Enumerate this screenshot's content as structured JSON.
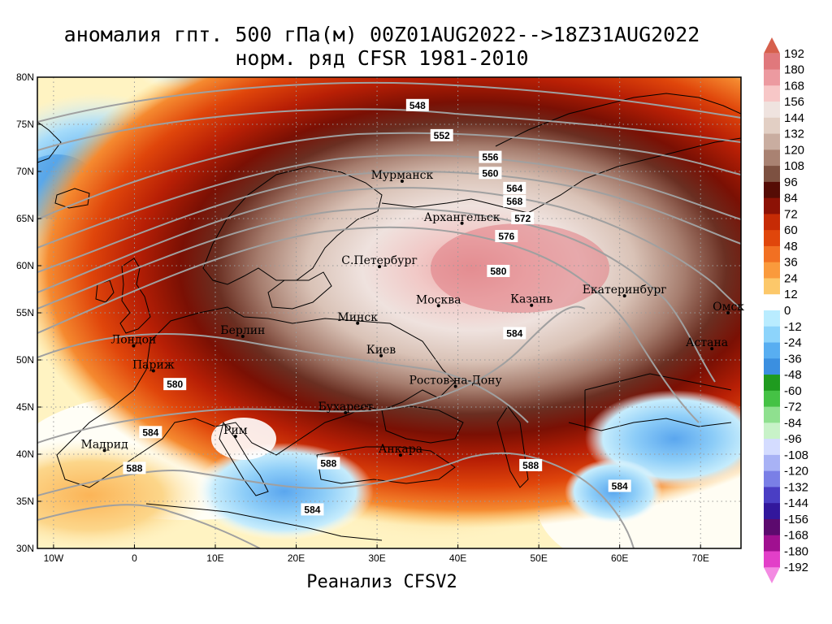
{
  "title_line1": "аномалия гпт. 500 гПа(м) 00Z01AUG2022-->18Z31AUG2022",
  "title_line2": "норм. ряд CFSR 1981-2010",
  "footer": "Реанализ CFSV2",
  "map": {
    "lon_range": [
      -12,
      75
    ],
    "lat_range": [
      30,
      80
    ],
    "lat_ticks": [
      "30N",
      "35N",
      "40N",
      "45N",
      "50N",
      "55N",
      "60N",
      "65N",
      "70N",
      "75N",
      "80N"
    ],
    "lon_ticks": [
      "10W",
      "0",
      "10E",
      "20E",
      "30E",
      "40E",
      "50E",
      "60E",
      "70E"
    ],
    "grid": true,
    "anomaly_center": {
      "lon": 45,
      "lat": 61,
      "value": 192
    },
    "cities": [
      {
        "name": "Мурманск",
        "lon": 33.1,
        "lat": 68.97
      },
      {
        "name": "Архангельск",
        "lon": 40.5,
        "lat": 64.5
      },
      {
        "name": "С.Петербург",
        "lon": 30.3,
        "lat": 59.9
      },
      {
        "name": "Москва",
        "lon": 37.6,
        "lat": 55.75
      },
      {
        "name": "Казань",
        "lon": 49.1,
        "lat": 55.8
      },
      {
        "name": "Екатеринбург",
        "lon": 60.6,
        "lat": 56.8
      },
      {
        "name": "Минск",
        "lon": 27.6,
        "lat": 53.9
      },
      {
        "name": "Омск",
        "lon": 73.4,
        "lat": 55.0
      },
      {
        "name": "Астана",
        "lon": 71.4,
        "lat": 51.2
      },
      {
        "name": "Лондон",
        "lon": -0.1,
        "lat": 51.5
      },
      {
        "name": "Берлин",
        "lon": 13.4,
        "lat": 52.5
      },
      {
        "name": "Париж",
        "lon": 2.35,
        "lat": 48.85
      },
      {
        "name": "Киев",
        "lon": 30.5,
        "lat": 50.45
      },
      {
        "name": "Ростов-на-Дону",
        "lon": 39.7,
        "lat": 47.2
      },
      {
        "name": "Бухарест",
        "lon": 26.1,
        "lat": 44.4
      },
      {
        "name": "Рим",
        "lon": 12.5,
        "lat": 41.9
      },
      {
        "name": "Мадрид",
        "lon": -3.7,
        "lat": 40.4
      },
      {
        "name": "Анкара",
        "lon": 32.9,
        "lat": 39.9
      }
    ],
    "contour_labels": [
      {
        "text": "548",
        "lon": 35,
        "lat": 77
      },
      {
        "text": "552",
        "lon": 38,
        "lat": 73.8
      },
      {
        "text": "556",
        "lon": 44,
        "lat": 71.5
      },
      {
        "text": "560",
        "lon": 44,
        "lat": 69.8
      },
      {
        "text": "564",
        "lon": 47,
        "lat": 68.2
      },
      {
        "text": "568",
        "lon": 47,
        "lat": 66.8
      },
      {
        "text": "572",
        "lon": 48,
        "lat": 65.0
      },
      {
        "text": "576",
        "lon": 46,
        "lat": 63.1
      },
      {
        "text": "580",
        "lon": 45,
        "lat": 59.4
      },
      {
        "text": "584",
        "lon": 47,
        "lat": 52.8
      },
      {
        "text": "580",
        "lon": 5,
        "lat": 47.4
      },
      {
        "text": "584",
        "lon": 2,
        "lat": 42.3
      },
      {
        "text": "588",
        "lon": 0,
        "lat": 38.5
      },
      {
        "text": "588",
        "lon": 24,
        "lat": 39.0
      },
      {
        "text": "588",
        "lon": 49,
        "lat": 38.8
      },
      {
        "text": "584",
        "lon": 22,
        "lat": 34.1
      },
      {
        "text": "584",
        "lon": 60,
        "lat": 36.6
      }
    ]
  },
  "colorbar": {
    "labels": [
      "192",
      "180",
      "168",
      "156",
      "144",
      "132",
      "120",
      "108",
      "96",
      "84",
      "72",
      "60",
      "48",
      "36",
      "24",
      "12",
      "0",
      "-12",
      "-24",
      "-36",
      "-48",
      "-60",
      "-72",
      "-84",
      "-96",
      "-108",
      "-120",
      "-132",
      "-144",
      "-156",
      "-168",
      "-180",
      "-192"
    ],
    "colors": [
      "#d6604d",
      "#e0787c",
      "#ec9aa0",
      "#f7c7c7",
      "#efe3df",
      "#e2cfc4",
      "#c9ada0",
      "#a98272",
      "#7d5141",
      "#550c05",
      "#8c1205",
      "#c62b05",
      "#e0460b",
      "#f27022",
      "#fa9a3c",
      "#fcc86a",
      "#ffffff",
      "#b9ecff",
      "#8dd4fb",
      "#58aef1",
      "#3b8fe0",
      "#1f9b1f",
      "#45c245",
      "#8fe08f",
      "#c8f2c8",
      "#d4dcff",
      "#a8b2f5",
      "#7a7fe6",
      "#4a3ec4",
      "#32179c",
      "#5c0a6e",
      "#a01090",
      "#e23fc8",
      "#f38ae2"
    ]
  }
}
